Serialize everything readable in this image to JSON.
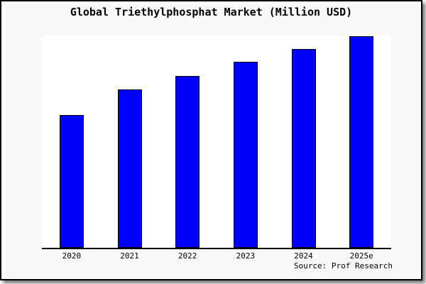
{
  "title": "Global Triethylphosphat Market (Million USD)",
  "source": "Source: Prof Research",
  "colors": {
    "bar_fill": "#0000ff",
    "bar_border": "#000000",
    "frame_background": "#f9f9f9",
    "plot_background": "#ffffff",
    "axis_line": "#000000",
    "frame_border": "#000000"
  },
  "chart_data": {
    "type": "bar",
    "categories": [
      "2020",
      "2021",
      "2022",
      "2023",
      "2024",
      "2025e"
    ],
    "values": [
      187,
      223,
      242,
      262,
      280,
      298
    ],
    "title": "Global Triethylphosphat Market (Million USD)",
    "xlabel": "",
    "ylabel": "",
    "ylim": [
      0,
      299
    ],
    "grid": false,
    "legend": false,
    "annotations": []
  }
}
